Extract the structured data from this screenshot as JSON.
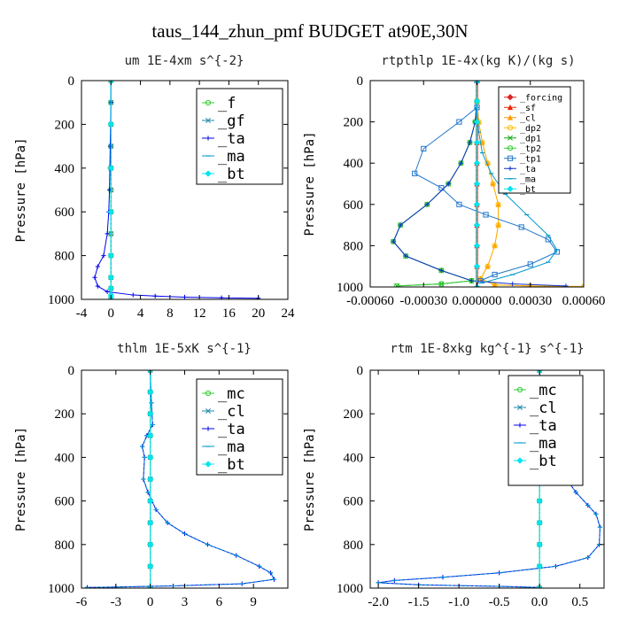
{
  "page": {
    "title": "taus_144_zhun_pmf  BUDGET at90E,30N"
  },
  "chart_data": [
    {
      "id": "um",
      "type": "line",
      "title": "um  1E-4xm s^{-2}",
      "xlabel": "",
      "ylabel": "Pressure [hPa]",
      "xlim": [
        -4,
        24
      ],
      "ylim": [
        1000,
        0
      ],
      "xticks": [
        -4,
        0,
        4,
        8,
        12,
        16,
        20,
        24
      ],
      "xtick_labels": [
        "-4",
        "0",
        "4",
        "8",
        "12",
        "16",
        "20",
        "24"
      ],
      "yticks": [
        0,
        200,
        400,
        600,
        800,
        1000
      ],
      "ytick_labels": [
        "0",
        "200",
        "400",
        "600",
        "800",
        "1000"
      ],
      "legend": {
        "placement": "top-right",
        "font_size": 17,
        "row_height": 20
      },
      "series": [
        {
          "name": "_f",
          "color": "#33cc33",
          "marker": "circle",
          "x": [
            0,
            0,
            0,
            0,
            0,
            0,
            0,
            0,
            0,
            0,
            0,
            0
          ],
          "y": [
            0,
            100,
            200,
            300,
            400,
            500,
            600,
            700,
            800,
            900,
            950,
            1000
          ]
        },
        {
          "name": "_gf",
          "color": "#2288aa",
          "marker": "x",
          "x": [
            0,
            0,
            0,
            0,
            0,
            0,
            0,
            0,
            0,
            0,
            0,
            0
          ],
          "y": [
            0,
            100,
            200,
            300,
            400,
            500,
            600,
            700,
            800,
            900,
            950,
            1000
          ]
        },
        {
          "name": "_ta",
          "color": "#0000ee",
          "marker": "plus",
          "x": [
            0,
            0,
            -0.05,
            -0.1,
            -0.15,
            -0.2,
            -0.3,
            -0.5,
            -1.0,
            -1.8,
            -2.2,
            -1.8,
            -0.5,
            3.0,
            6.0,
            10.0,
            15.0,
            20.0
          ],
          "y": [
            0,
            100,
            200,
            300,
            400,
            500,
            600,
            700,
            800,
            850,
            900,
            940,
            965,
            980,
            985,
            990,
            993,
            995
          ]
        },
        {
          "name": "_ma",
          "color": "#0099cc",
          "marker": "dash",
          "x": [
            0,
            0,
            0,
            0,
            0,
            0,
            0,
            0,
            0,
            0
          ],
          "y": [
            0,
            200,
            400,
            600,
            800,
            900,
            950,
            980,
            990,
            1000
          ]
        },
        {
          "name": "_bt",
          "color": "#00e5ee",
          "marker": "diamond",
          "x": [
            0,
            0,
            0,
            0,
            0,
            0,
            0,
            0,
            0,
            0
          ],
          "y": [
            0,
            200,
            400,
            600,
            800,
            900,
            950,
            980,
            990,
            1000
          ]
        }
      ]
    },
    {
      "id": "rtpthlp",
      "type": "line",
      "title": "rtpthlp  1E-4x(kg K)/(kg s)",
      "xlabel": "",
      "ylabel": "Pressure [hPa]",
      "xlim": [
        -0.0006,
        0.0006
      ],
      "ylim": [
        1000,
        0
      ],
      "xticks": [
        -0.0006,
        -0.0003,
        0,
        0.0003,
        0.0006
      ],
      "xtick_labels": [
        "-0.00060",
        "-0.00030",
        "0.000000",
        "0.00030",
        "0.00060"
      ],
      "yticks": [
        0,
        200,
        400,
        600,
        800,
        1000
      ],
      "ytick_labels": [
        "0",
        "200",
        "400",
        "600",
        "800",
        "1000"
      ],
      "legend": {
        "placement": "top-right",
        "font_size": 10,
        "row_height": 11.5
      },
      "series": [
        {
          "name": "_forcing",
          "color": "#dd2222",
          "marker": "diamond",
          "x": [
            0,
            0,
            0,
            0,
            0,
            0,
            0,
            0,
            0,
            0,
            0
          ],
          "y": [
            0,
            100,
            200,
            300,
            400,
            500,
            600,
            700,
            800,
            900,
            1000
          ]
        },
        {
          "name": "_sf",
          "color": "#ee2200",
          "marker": "triangle",
          "x": [
            0,
            0,
            0,
            0,
            0,
            0,
            0,
            0,
            0,
            0,
            0
          ],
          "y": [
            0,
            100,
            200,
            300,
            400,
            500,
            600,
            700,
            800,
            900,
            1000
          ]
        },
        {
          "name": "_cl",
          "color": "#ff9900",
          "marker": "triangle",
          "x": [
            0,
            0,
            1e-05,
            3e-05,
            6e-05,
            9e-05,
            0.00012,
            0.00012,
            0.0001,
            6e-05,
            2e-05,
            0.0001,
            0.0003,
            0.0006
          ],
          "y": [
            0,
            100,
            200,
            300,
            400,
            500,
            600,
            700,
            800,
            900,
            960,
            990,
            995,
            998
          ]
        },
        {
          "name": "_dp2",
          "color": "#ffbb00",
          "marker": "circle",
          "x": [
            0,
            0,
            1e-05,
            3e-05,
            6e-05,
            9e-05,
            0.00012,
            0.00012,
            0.0001,
            6e-05,
            2e-05,
            0.0001,
            0.0003,
            0.0006
          ],
          "y": [
            0,
            100,
            200,
            300,
            400,
            500,
            600,
            700,
            800,
            900,
            960,
            990,
            995,
            998
          ]
        },
        {
          "name": "_dp1",
          "color": "#11aa11",
          "marker": "x",
          "x": [
            0,
            0,
            -1e-05,
            -4e-05,
            -9e-05,
            -0.00016,
            -0.00028,
            -0.00043,
            -0.00047,
            -0.0004,
            -0.0002,
            -3e-05,
            -0.0002,
            -0.00045
          ],
          "y": [
            0,
            100,
            200,
            300,
            400,
            500,
            600,
            700,
            780,
            850,
            920,
            970,
            985,
            995
          ]
        },
        {
          "name": "_tp2",
          "color": "#33cc33",
          "marker": "circle",
          "x": [
            0,
            0,
            -1e-05,
            -4e-05,
            -9e-05,
            -0.00016,
            -0.00028,
            -0.00043,
            -0.00047,
            -0.0004,
            -0.0002,
            -3e-05,
            -0.0002,
            -0.00045
          ],
          "y": [
            0,
            100,
            200,
            300,
            400,
            500,
            600,
            700,
            780,
            850,
            920,
            970,
            985,
            995
          ]
        },
        {
          "name": "_tp1",
          "color": "#2277cc",
          "marker": "square",
          "x": [
            0,
            0,
            -0.0001,
            -0.0003,
            -0.00035,
            -0.0002,
            -0.0001,
            5e-05,
            0.00025,
            0.0004,
            0.00045,
            0.0003,
            0.0001,
            2e-05
          ],
          "y": [
            0,
            130,
            200,
            330,
            450,
            520,
            600,
            650,
            710,
            770,
            830,
            890,
            940,
            970
          ]
        },
        {
          "name": "_ta",
          "color": "#1133cc",
          "marker": "plus",
          "x": [
            0,
            0,
            -1e-05,
            -4e-05,
            -9e-05,
            -0.00016,
            -0.00028,
            -0.00043,
            -0.00047,
            -0.0004,
            -0.0002,
            -3e-05,
            0.0002,
            0.0005
          ],
          "y": [
            0,
            100,
            200,
            300,
            400,
            500,
            600,
            700,
            780,
            850,
            920,
            970,
            985,
            995
          ]
        },
        {
          "name": "_ma",
          "color": "#0099cc",
          "marker": "dash",
          "x": [
            0,
            0,
            1e-05,
            3e-05,
            8e-05,
            0.00016,
            0.00028,
            0.0004,
            0.00045,
            0.0004,
            0.0002,
            3e-05
          ],
          "y": [
            0,
            130,
            250,
            350,
            450,
            550,
            650,
            750,
            820,
            880,
            940,
            980
          ]
        },
        {
          "name": "_bt",
          "color": "#00e5ee",
          "marker": "diamond",
          "x": [
            0,
            0,
            0,
            0,
            0,
            0,
            0,
            0,
            0,
            0,
            0
          ],
          "y": [
            0,
            100,
            200,
            300,
            400,
            500,
            600,
            700,
            800,
            900,
            1000
          ]
        }
      ]
    },
    {
      "id": "thlm",
      "type": "line",
      "title": "thlm  1E-5xK s^{-1}",
      "xlabel": "",
      "ylabel": "Pressure [hPa]",
      "xlim": [
        -6,
        12
      ],
      "ylim": [
        1000,
        0
      ],
      "xticks": [
        -6,
        -3,
        0,
        3,
        6,
        9
      ],
      "xtick_labels": [
        "-6",
        "-3",
        "0",
        "3",
        "6",
        "9"
      ],
      "yticks": [
        0,
        200,
        400,
        600,
        800,
        1000
      ],
      "ytick_labels": [
        "0",
        "200",
        "400",
        "600",
        "800",
        "1000"
      ],
      "legend": {
        "placement": "top-right",
        "font_size": 17,
        "row_height": 20
      },
      "series": [
        {
          "name": "_mc",
          "color": "#33cc33",
          "marker": "circle",
          "x": [
            0,
            0,
            0,
            0,
            0,
            0,
            0,
            0,
            0,
            0,
            0
          ],
          "y": [
            0,
            100,
            200,
            300,
            400,
            500,
            600,
            700,
            800,
            900,
            1000
          ]
        },
        {
          "name": "_cl",
          "color": "#2288aa",
          "marker": "x",
          "x": [
            0,
            0,
            0,
            0,
            0,
            0,
            0,
            0,
            0,
            0,
            0
          ],
          "y": [
            0,
            100,
            200,
            300,
            400,
            500,
            600,
            700,
            800,
            900,
            1000
          ]
        },
        {
          "name": "_ta",
          "color": "#0000ee",
          "marker": "plus",
          "x": [
            0,
            0.05,
            0.1,
            0.2,
            -0.3,
            -0.7,
            -0.5,
            -0.6,
            -0.2,
            0.5,
            1.5,
            3.0,
            5.0,
            7.5,
            9.5,
            10.5,
            10.8,
            8.0,
            2.0,
            -3.0,
            -5.5
          ],
          "y": [
            0,
            100,
            150,
            250,
            300,
            350,
            400,
            500,
            560,
            640,
            700,
            750,
            800,
            850,
            900,
            930,
            960,
            980,
            990,
            995,
            997
          ]
        },
        {
          "name": "_ma",
          "color": "#0099cc",
          "marker": "dash",
          "x": [
            0,
            0.05,
            0.1,
            0.2,
            -0.3,
            -0.7,
            -0.5,
            -0.6,
            -0.2,
            0.5,
            1.5,
            3.0,
            5.0,
            7.5,
            9.5,
            10.5,
            10.8,
            8.0,
            2.0,
            -3.0,
            -5.5
          ],
          "y": [
            0,
            100,
            150,
            250,
            300,
            350,
            400,
            500,
            560,
            640,
            700,
            750,
            800,
            850,
            900,
            930,
            960,
            980,
            990,
            995,
            997
          ]
        },
        {
          "name": "_bt",
          "color": "#00e5ee",
          "marker": "diamond",
          "x": [
            0,
            0,
            0,
            0,
            0,
            0,
            0,
            0,
            0,
            0,
            0
          ],
          "y": [
            0,
            100,
            200,
            300,
            400,
            500,
            600,
            700,
            800,
            900,
            1000
          ]
        }
      ]
    },
    {
      "id": "rtm",
      "type": "line",
      "title": "rtm  1E-8xkg kg^{-1} s^{-1}",
      "xlabel": "",
      "ylabel": "Pressure [hPa]",
      "xlim": [
        -2.1,
        0.8
      ],
      "ylim": [
        1000,
        0
      ],
      "xticks": [
        -2.0,
        -1.5,
        -1.0,
        -0.5,
        0.0,
        0.5
      ],
      "xtick_labels": [
        "-2.0",
        "-1.5",
        "-1.0",
        "-0.5",
        "0.0",
        "0.5"
      ],
      "yticks": [
        0,
        200,
        400,
        600,
        800,
        1000
      ],
      "ytick_labels": [
        "0",
        "200",
        "400",
        "600",
        "800",
        "1000"
      ],
      "legend": {
        "placement": "top-right",
        "font_size": 17,
        "row_height": 20
      },
      "series": [
        {
          "name": "_mc",
          "color": "#33cc33",
          "marker": "circle",
          "x": [
            0,
            0,
            0,
            0,
            0,
            0,
            0,
            0,
            0,
            0,
            0
          ],
          "y": [
            0,
            100,
            200,
            300,
            400,
            500,
            600,
            700,
            800,
            900,
            1000
          ]
        },
        {
          "name": "_cl",
          "color": "#2288aa",
          "marker": "x",
          "x": [
            0,
            0,
            0,
            0,
            0,
            0,
            0,
            0,
            0,
            0,
            0
          ],
          "y": [
            0,
            100,
            200,
            300,
            400,
            500,
            600,
            700,
            800,
            900,
            1000
          ]
        },
        {
          "name": "_ta",
          "color": "#0000ee",
          "marker": "plus",
          "x": [
            0,
            0.02,
            0.08,
            0.12,
            0.15,
            0.2,
            0.3,
            0.45,
            0.6,
            0.7,
            0.75,
            0.74,
            0.6,
            0.2,
            -0.5,
            -1.2,
            -1.8,
            -2.0,
            -1.5,
            -0.5,
            0.0
          ],
          "y": [
            0,
            100,
            200,
            260,
            320,
            400,
            480,
            560,
            620,
            660,
            720,
            800,
            860,
            900,
            930,
            950,
            965,
            975,
            985,
            992,
            997
          ]
        },
        {
          "name": "_ma",
          "color": "#0099cc",
          "marker": "dash",
          "x": [
            0,
            0.02,
            0.08,
            0.12,
            0.15,
            0.2,
            0.3,
            0.45,
            0.6,
            0.7,
            0.75,
            0.74,
            0.6,
            0.2,
            -0.5,
            -1.2,
            -1.8,
            -2.0,
            -1.5,
            -0.5,
            0.0
          ],
          "y": [
            0,
            100,
            200,
            260,
            320,
            400,
            480,
            560,
            620,
            660,
            720,
            800,
            860,
            900,
            930,
            950,
            965,
            975,
            985,
            992,
            997
          ]
        },
        {
          "name": "_bt",
          "color": "#00e5ee",
          "marker": "diamond",
          "x": [
            0,
            0,
            0,
            0,
            0,
            0,
            0,
            0,
            0,
            0,
            0
          ],
          "y": [
            0,
            100,
            200,
            300,
            400,
            500,
            600,
            700,
            800,
            900,
            1000
          ]
        }
      ]
    }
  ]
}
